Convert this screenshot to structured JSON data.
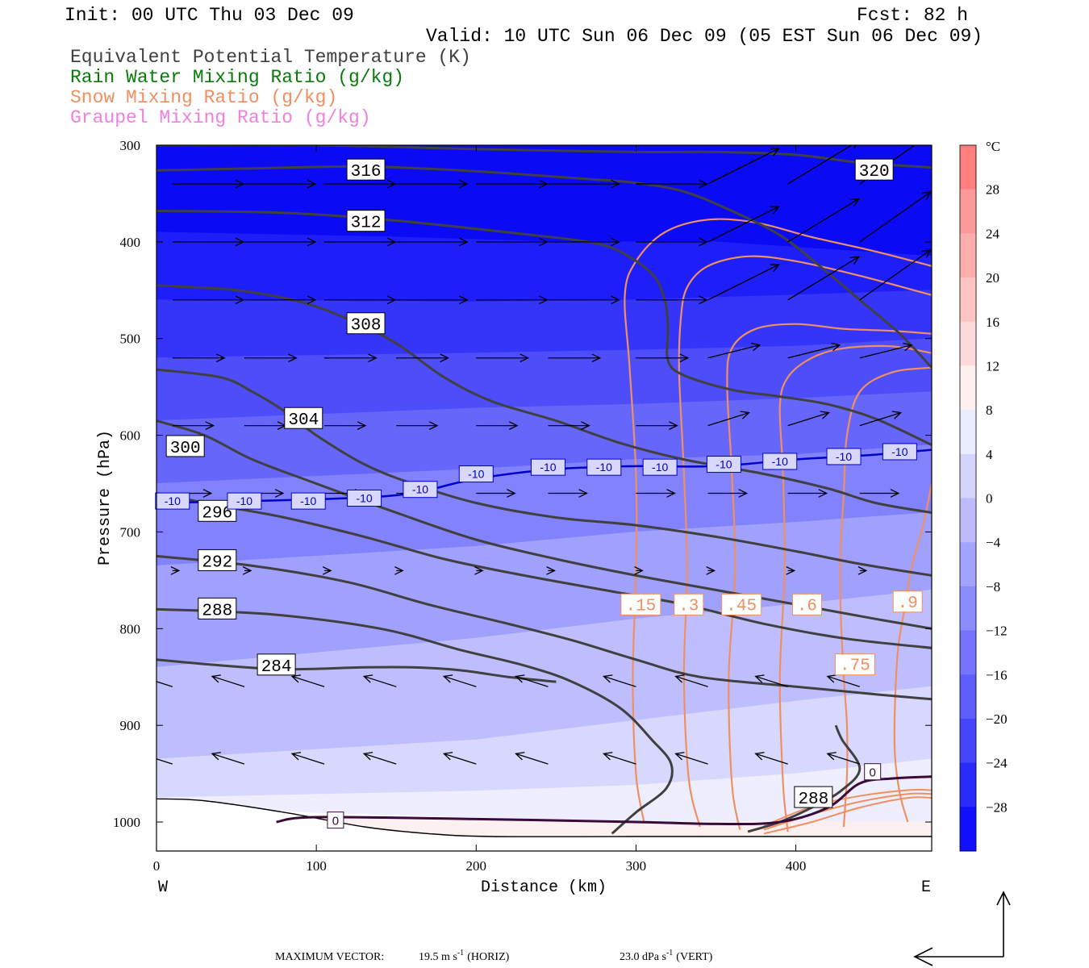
{
  "header": {
    "init": "Init: 00 UTC Thu 03 Dec 09",
    "fcst": "Fcst:   82 h",
    "valid": "Valid: 10 UTC Sun 06 Dec 09 (05 EST Sun 06 Dec 09)"
  },
  "fields": [
    {
      "label": "Equivalent Potential Temperature (K)",
      "color": "#404040"
    },
    {
      "label": "Rain Water Mixing Ratio (g/kg)",
      "color": "#0a7a0a"
    },
    {
      "label": "Snow Mixing Ratio (g/kg)",
      "color": "#f09060"
    },
    {
      "label": "Graupel Mixing Ratio (g/kg)",
      "color": "#f080e0"
    }
  ],
  "chart_data": {
    "type": "heatmap",
    "title": "",
    "xlabel": "Distance (km)",
    "ylabel": "Pressure (hPa)",
    "xlim": [
      0,
      485
    ],
    "ylim": [
      1030,
      300
    ],
    "x_ticks": [
      0,
      100,
      200,
      300,
      400
    ],
    "y_ticks": [
      300,
      400,
      500,
      600,
      700,
      800,
      900,
      1000
    ],
    "x_end_labels": {
      "left": "W",
      "right": "E"
    },
    "temperature_shading_levels": [
      -28,
      -24,
      -20,
      -16,
      -12,
      -8,
      -4,
      0,
      4,
      8,
      12,
      16,
      20,
      24,
      28
    ],
    "colorbar_unit": "°C",
    "colorbar_colors": [
      "#1010ff",
      "#2a2aff",
      "#4545ff",
      "#5c5cff",
      "#7474ff",
      "#8c8cff",
      "#a4a4ff",
      "#bcbcff",
      "#d4d4ff",
      "#ececff",
      "#fff0f0",
      "#ffdada",
      "#ffc4c4",
      "#ffaeae",
      "#ff9898",
      "#ff7f7f",
      "#ff6666",
      "#ff4d4d",
      "#ff3333",
      "#ff1a1a"
    ],
    "theta_e_contours": [
      {
        "label": "320",
        "pts": [
          [
            0,
            300
          ],
          [
            100,
            300
          ],
          [
            200,
            304
          ],
          [
            300,
            307
          ],
          [
            350,
            307
          ],
          [
            400,
            310
          ],
          [
            440,
            318
          ],
          [
            485,
            323
          ]
        ]
      },
      {
        "label": "316",
        "pts": [
          [
            0,
            326
          ],
          [
            60,
            324
          ],
          [
            130,
            322
          ],
          [
            200,
            327
          ],
          [
            270,
            335
          ],
          [
            300,
            339
          ],
          [
            330,
            348
          ],
          [
            360,
            368
          ],
          [
            390,
            393
          ],
          [
            415,
            425
          ],
          [
            440,
            460
          ],
          [
            465,
            495
          ],
          [
            485,
            530
          ]
        ]
      },
      {
        "label": "312",
        "pts": [
          [
            0,
            368
          ],
          [
            80,
            370
          ],
          [
            150,
            378
          ],
          [
            230,
            392
          ],
          [
            270,
            400
          ],
          [
            290,
            410
          ],
          [
            310,
            433
          ],
          [
            318,
            460
          ],
          [
            320,
            490
          ],
          [
            320,
            523
          ],
          [
            330,
            538
          ],
          [
            360,
            553
          ],
          [
            390,
            560
          ],
          [
            420,
            568
          ],
          [
            450,
            583
          ],
          [
            485,
            610
          ]
        ]
      },
      {
        "label": "308",
        "pts": [
          [
            0,
            445
          ],
          [
            50,
            450
          ],
          [
            90,
            462
          ],
          [
            120,
            480
          ],
          [
            150,
            505
          ],
          [
            180,
            540
          ],
          [
            210,
            565
          ],
          [
            250,
            585
          ],
          [
            290,
            608
          ],
          [
            330,
            625
          ],
          [
            380,
            640
          ],
          [
            420,
            655
          ],
          [
            450,
            670
          ],
          [
            485,
            680
          ]
        ]
      },
      {
        "label": "304",
        "pts": [
          [
            0,
            532
          ],
          [
            40,
            540
          ],
          [
            60,
            555
          ],
          [
            80,
            575
          ],
          [
            100,
            600
          ],
          [
            130,
            630
          ],
          [
            160,
            650
          ],
          [
            200,
            670
          ],
          [
            250,
            685
          ],
          [
            300,
            693
          ],
          [
            350,
            705
          ],
          [
            400,
            720
          ],
          [
            440,
            733
          ],
          [
            485,
            745
          ]
        ]
      },
      {
        "label": "300",
        "pts": [
          [
            0,
            585
          ],
          [
            30,
            600
          ],
          [
            60,
            625
          ],
          [
            100,
            650
          ],
          [
            150,
            680
          ],
          [
            200,
            708
          ],
          [
            250,
            728
          ],
          [
            300,
            745
          ],
          [
            350,
            760
          ],
          [
            400,
            775
          ],
          [
            450,
            790
          ],
          [
            485,
            800
          ]
        ]
      },
      {
        "label": "296",
        "pts": [
          [
            0,
            660
          ],
          [
            40,
            673
          ],
          [
            80,
            685
          ],
          [
            130,
            705
          ],
          [
            180,
            728
          ],
          [
            230,
            745
          ],
          [
            280,
            760
          ],
          [
            330,
            775
          ],
          [
            380,
            795
          ],
          [
            430,
            810
          ],
          [
            485,
            820
          ]
        ]
      },
      {
        "label": "292",
        "pts": [
          [
            0,
            725
          ],
          [
            60,
            735
          ],
          [
            120,
            752
          ],
          [
            170,
            775
          ],
          [
            220,
            795
          ],
          [
            260,
            812
          ],
          [
            300,
            832
          ],
          [
            340,
            850
          ],
          [
            400,
            860
          ],
          [
            450,
            868
          ],
          [
            485,
            873
          ]
        ]
      },
      {
        "label": "288",
        "pts": [
          [
            0,
            780
          ],
          [
            70,
            785
          ],
          [
            140,
            800
          ],
          [
            190,
            822
          ],
          [
            230,
            838
          ],
          [
            260,
            855
          ],
          [
            290,
            882
          ],
          [
            310,
            915
          ],
          [
            322,
            940
          ],
          [
            319,
            965
          ],
          [
            300,
            990
          ],
          [
            285,
            1012
          ]
        ]
      },
      {
        "label": "288",
        "pts": [
          [
            370,
            1010
          ],
          [
            390,
            1000
          ],
          [
            410,
            985
          ],
          [
            428,
            968
          ],
          [
            440,
            945
          ],
          [
            429,
            915
          ],
          [
            425,
            900
          ]
        ]
      },
      {
        "label": "284",
        "pts": [
          [
            0,
            832
          ],
          [
            40,
            838
          ],
          [
            80,
            842
          ],
          [
            130,
            840
          ],
          [
            160,
            840
          ],
          [
            190,
            843
          ],
          [
            220,
            850
          ],
          [
            250,
            855
          ]
        ]
      }
    ],
    "zero_isotherm": [
      [
        75,
        1000
      ],
      [
        100,
        995
      ],
      [
        200,
        997
      ],
      [
        300,
        1000
      ],
      [
        350,
        1002
      ],
      [
        390,
        1000
      ],
      [
        420,
        985
      ],
      [
        440,
        960
      ],
      [
        460,
        955
      ],
      [
        485,
        953
      ]
    ],
    "minus10_isotherm": [
      [
        0,
        670
      ],
      [
        60,
        668
      ],
      [
        120,
        665
      ],
      [
        160,
        660
      ],
      [
        200,
        645
      ],
      [
        250,
        635
      ],
      [
        300,
        632
      ],
      [
        350,
        632
      ],
      [
        400,
        625
      ],
      [
        450,
        620
      ],
      [
        485,
        615
      ]
    ],
    "snow_contours": [
      {
        "label": ".15",
        "pts": [
          [
            305,
            1000
          ],
          [
            300,
            950
          ],
          [
            298,
            850
          ],
          [
            300,
            740
          ],
          [
            300,
            640
          ],
          [
            296,
            530
          ],
          [
            293,
            455
          ],
          [
            300,
            420
          ],
          [
            318,
            390
          ],
          [
            345,
            377
          ],
          [
            375,
            380
          ],
          [
            410,
            395
          ],
          [
            450,
            410
          ],
          [
            485,
            425
          ]
        ]
      },
      {
        "label": ".3",
        "pts": [
          [
            340,
            1005
          ],
          [
            333,
            955
          ],
          [
            330,
            850
          ],
          [
            332,
            740
          ],
          [
            330,
            640
          ],
          [
            327,
            535
          ],
          [
            328,
            480
          ],
          [
            332,
            447
          ],
          [
            345,
            425
          ],
          [
            370,
            415
          ],
          [
            400,
            420
          ],
          [
            440,
            435
          ],
          [
            485,
            455
          ]
        ]
      },
      {
        "label": ".45",
        "pts": [
          [
            365,
            1008
          ],
          [
            360,
            960
          ],
          [
            358,
            850
          ],
          [
            362,
            740
          ],
          [
            360,
            640
          ],
          [
            357,
            548
          ],
          [
            360,
            510
          ],
          [
            375,
            490
          ],
          [
            400,
            485
          ],
          [
            430,
            490
          ],
          [
            460,
            492
          ],
          [
            485,
            495
          ]
        ]
      },
      {
        "label": ".6",
        "pts": [
          [
            395,
            1010
          ],
          [
            392,
            960
          ],
          [
            390,
            850
          ],
          [
            393,
            740
          ],
          [
            392,
            640
          ],
          [
            390,
            570
          ],
          [
            395,
            540
          ],
          [
            410,
            520
          ],
          [
            430,
            510
          ],
          [
            460,
            508
          ],
          [
            485,
            515
          ]
        ]
      },
      {
        "label": ".75",
        "pts": [
          [
            430,
            1005
          ],
          [
            432,
            950
          ],
          [
            432,
            900
          ],
          [
            430,
            850
          ],
          [
            428,
            780
          ],
          [
            428,
            720
          ],
          [
            430,
            660
          ],
          [
            432,
            600
          ],
          [
            440,
            555
          ],
          [
            460,
            535
          ],
          [
            485,
            530
          ]
        ]
      },
      {
        "label": ".9",
        "pts": [
          [
            470,
            1000
          ],
          [
            465,
            970
          ],
          [
            462,
            930
          ],
          [
            462,
            880
          ],
          [
            464,
            820
          ],
          [
            468,
            780
          ],
          [
            472,
            740
          ],
          [
            480,
            690
          ],
          [
            485,
            650
          ]
        ]
      }
    ],
    "contour_labels": {
      "minus10": "-10",
      "zero": "0"
    },
    "vector_footer": {
      "title": "MAXIMUM VECTOR:",
      "horiz": "19.5 m s",
      "horiz_exp": "-1",
      "horiz_tag": "(HORIZ)",
      "vert": "23.0 dPa s",
      "vert_exp": "-1",
      "vert_tag": "(VERT)"
    }
  }
}
